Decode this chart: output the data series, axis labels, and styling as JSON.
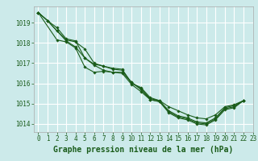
{
  "background_color": "#cceaea",
  "grid_color": "#ffffff",
  "line_color": "#1a5c1a",
  "marker_color": "#1a5c1a",
  "title": "Graphe pression niveau de la mer (hPa)",
  "xlim": [
    -0.5,
    23
  ],
  "ylim": [
    1013.6,
    1019.8
  ],
  "yticks": [
    1014,
    1015,
    1016,
    1017,
    1018,
    1019
  ],
  "xticks": [
    0,
    1,
    2,
    3,
    4,
    5,
    6,
    7,
    8,
    9,
    10,
    11,
    12,
    13,
    14,
    15,
    16,
    17,
    18,
    19,
    20,
    21,
    22,
    23
  ],
  "series1_x": [
    0,
    1,
    2,
    3,
    4,
    5,
    6,
    7,
    8,
    9,
    10,
    11,
    12,
    13,
    14,
    15,
    16,
    17,
    18,
    19,
    20,
    21,
    22
  ],
  "series1": [
    1019.5,
    1019.1,
    1018.75,
    1018.2,
    1018.1,
    1017.25,
    1016.95,
    1016.85,
    1016.75,
    1016.7,
    1016.0,
    1015.8,
    1015.3,
    1015.15,
    1014.85,
    1014.65,
    1014.45,
    1014.3,
    1014.25,
    1014.45,
    1014.85,
    1014.95,
    1015.15
  ],
  "series2_x": [
    0,
    1,
    2,
    3,
    4,
    5,
    6,
    7,
    8,
    9,
    10,
    11,
    12,
    13,
    14,
    15,
    16,
    17,
    18,
    19,
    20,
    21,
    22
  ],
  "series2": [
    1019.5,
    1019.1,
    1018.6,
    1018.15,
    1018.05,
    1017.7,
    1017.0,
    1016.85,
    1016.7,
    1016.65,
    1016.05,
    1015.75,
    1015.25,
    1015.15,
    1014.65,
    1014.4,
    1014.3,
    1014.1,
    1014.05,
    1014.3,
    1014.8,
    1014.9,
    1015.15
  ],
  "series3_x": [
    0,
    2,
    3,
    4,
    5,
    6,
    7,
    8,
    9,
    10,
    11,
    12,
    13,
    14,
    15,
    16,
    17,
    18,
    19,
    20,
    21,
    22
  ],
  "series3": [
    1019.5,
    1018.15,
    1018.05,
    1017.75,
    1016.8,
    1016.55,
    1016.6,
    1016.55,
    1016.55,
    1016.05,
    1015.7,
    1015.2,
    1015.1,
    1014.6,
    1014.35,
    1014.25,
    1014.05,
    1014.0,
    1014.25,
    1014.75,
    1014.85,
    1015.15
  ],
  "series4_x": [
    0,
    1,
    2,
    3,
    4,
    5,
    6,
    7,
    8,
    9,
    10,
    11,
    12,
    13,
    14,
    15,
    16,
    17,
    18,
    19,
    20,
    21,
    22
  ],
  "series4": [
    1019.5,
    1019.1,
    1018.6,
    1018.1,
    1017.8,
    1017.25,
    1016.9,
    1016.65,
    1016.55,
    1016.5,
    1015.95,
    1015.6,
    1015.2,
    1015.1,
    1014.55,
    1014.3,
    1014.2,
    1014.0,
    1013.95,
    1014.2,
    1014.7,
    1014.8,
    1015.15
  ],
  "title_fontsize": 7,
  "tick_fontsize": 5.5
}
